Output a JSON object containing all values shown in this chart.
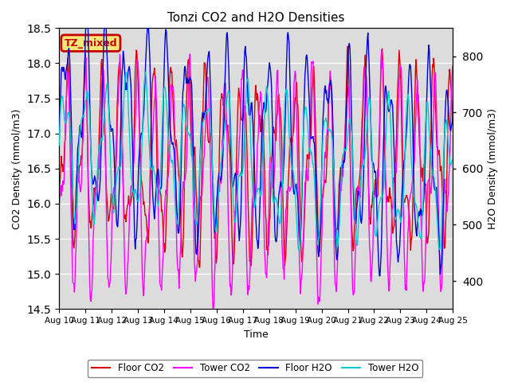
{
  "title": "Tonzi CO2 and H2O Densities",
  "xlabel": "Time",
  "ylabel_left": "CO2 Density (mmol/m3)",
  "ylabel_right": "H2O Density (mmol/m3)",
  "ylim_left": [
    14.5,
    18.5
  ],
  "ylim_right": [
    350,
    850
  ],
  "xlim": [
    0,
    15
  ],
  "x_tick_labels": [
    "Aug 10",
    "Aug 11",
    "Aug 12",
    "Aug 13",
    "Aug 14",
    "Aug 15",
    "Aug 16",
    "Aug 17",
    "Aug 18",
    "Aug 19",
    "Aug 20",
    "Aug 21",
    "Aug 22",
    "Aug 23",
    "Aug 24",
    "Aug 25"
  ],
  "annotation_text": "TZ_mixed",
  "annotation_bg": "#f5e87a",
  "annotation_border": "#cc0000",
  "annotation_text_color": "#cc0000",
  "floor_co2_color": "#dd0000",
  "tower_co2_color": "#ff00ff",
  "floor_h2o_color": "#0000dd",
  "tower_h2o_color": "#00cccc",
  "bg_color": "#dcdcdc",
  "legend_labels": [
    "Floor CO2",
    "Tower CO2",
    "Floor H2O",
    "Tower H2O"
  ],
  "n_points": 720,
  "lw": 1.0
}
